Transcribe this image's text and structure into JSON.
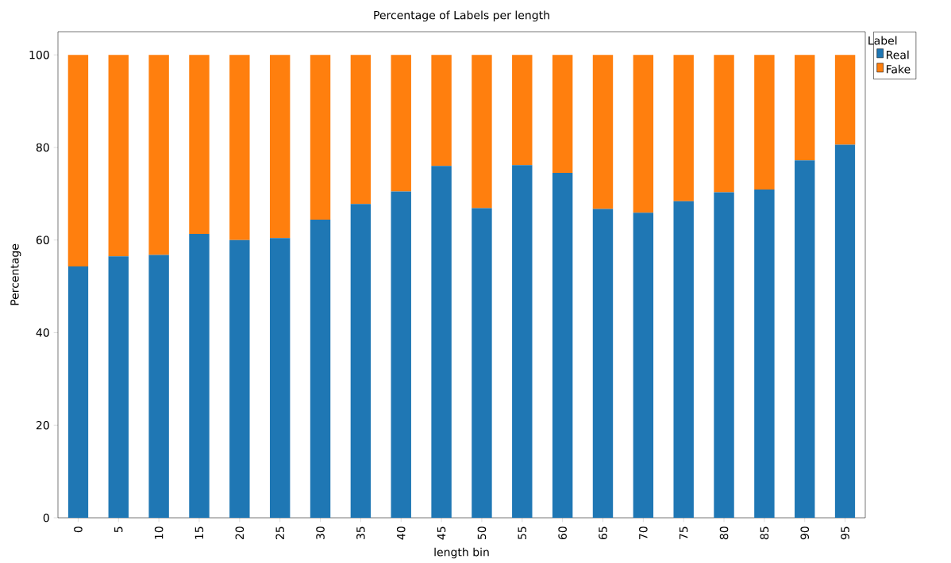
{
  "chart_data": {
    "type": "bar",
    "title": "Percentage of Labels per length",
    "xlabel": "length bin",
    "ylabel": "Percentage",
    "legend_title": "Label",
    "categories": [
      "0",
      "5",
      "10",
      "15",
      "20",
      "25",
      "30",
      "35",
      "40",
      "45",
      "50",
      "55",
      "60",
      "65",
      "70",
      "75",
      "80",
      "85",
      "90",
      "95"
    ],
    "stacked": true,
    "series": [
      {
        "name": "Real",
        "color": "#1f77b4",
        "values": [
          54.3,
          56.5,
          56.8,
          61.3,
          60.0,
          60.4,
          64.4,
          67.8,
          70.5,
          76.0,
          66.9,
          76.2,
          74.5,
          66.7,
          65.9,
          68.4,
          70.3,
          70.9,
          77.2,
          80.6
        ]
      },
      {
        "name": "Fake",
        "color": "#ff7f0e",
        "values": [
          45.7,
          43.5,
          43.2,
          38.7,
          40.0,
          39.6,
          35.6,
          32.2,
          29.5,
          24.0,
          33.1,
          23.8,
          25.5,
          33.3,
          34.1,
          31.6,
          29.7,
          29.1,
          22.8,
          19.4
        ]
      }
    ],
    "ylim": [
      0,
      105
    ],
    "yticks": [
      0,
      20,
      40,
      60,
      80,
      100
    ],
    "legend": "right",
    "grid": false
  }
}
